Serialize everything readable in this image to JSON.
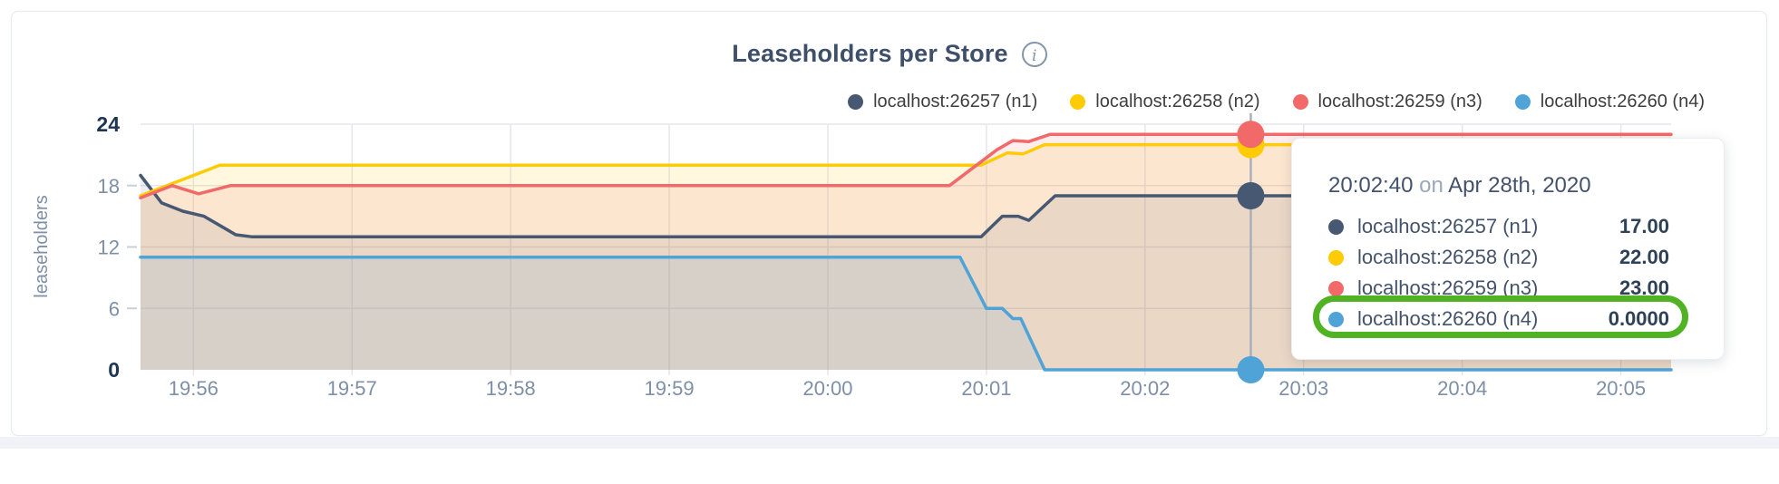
{
  "title": {
    "text": "Leaseholders per Store",
    "info_glyph": "i"
  },
  "chart_data": {
    "type": "line",
    "title": "Leaseholders per Store",
    "xlabel": "",
    "ylabel": "leaseholders",
    "ylim": [
      0,
      24
    ],
    "yticks": [
      0,
      6,
      12,
      18,
      24
    ],
    "ytick_emphasis": [
      0,
      24
    ],
    "xticks": [
      "19:56",
      "19:57",
      "19:58",
      "19:59",
      "20:00",
      "20:01",
      "20:02",
      "20:03",
      "20:04",
      "20:05"
    ],
    "x_domain": [
      "19:55:40",
      "20:05:19"
    ],
    "grid": true,
    "gridline_color": "#e3e6ec",
    "area_fill": true,
    "legend_position": "top-right",
    "series": [
      {
        "name": "localhost:26257 (n1)",
        "color": "#475872",
        "fill_opacity": 0.1,
        "points": [
          [
            "19:55:40",
            19
          ],
          [
            "19:55:48",
            16.3
          ],
          [
            "19:55:56",
            15.5
          ],
          [
            "19:56:04",
            15
          ],
          [
            "19:56:16",
            13.2
          ],
          [
            "19:56:22",
            13
          ],
          [
            "20:00:58",
            13
          ],
          [
            "20:01:06",
            15
          ],
          [
            "20:01:12",
            15
          ],
          [
            "20:01:16",
            14.6
          ],
          [
            "20:01:26",
            17
          ],
          [
            "20:05:19",
            17
          ]
        ]
      },
      {
        "name": "localhost:26258 (n2)",
        "color": "#FFCB05",
        "fill_opacity": 0.13,
        "points": [
          [
            "19:55:40",
            17
          ],
          [
            "19:56:10",
            20
          ],
          [
            "20:00:58",
            20
          ],
          [
            "20:01:08",
            21.2
          ],
          [
            "20:01:14",
            21.1
          ],
          [
            "20:01:22",
            22
          ],
          [
            "20:05:19",
            22
          ]
        ]
      },
      {
        "name": "localhost:26259 (n3)",
        "color": "#F16969",
        "fill_opacity": 0.12,
        "points": [
          [
            "19:55:40",
            16.8
          ],
          [
            "19:55:52",
            18
          ],
          [
            "19:56:02",
            17.2
          ],
          [
            "19:56:14",
            18
          ],
          [
            "20:00:46",
            18
          ],
          [
            "20:01:04",
            21.5
          ],
          [
            "20:01:10",
            22.4
          ],
          [
            "20:01:16",
            22.3
          ],
          [
            "20:01:24",
            23
          ],
          [
            "20:05:19",
            23
          ]
        ]
      },
      {
        "name": "localhost:26260 (n4)",
        "color": "#4FA3D6",
        "fill_opacity": 0.12,
        "points": [
          [
            "19:55:40",
            11
          ],
          [
            "20:00:50",
            11
          ],
          [
            "20:01:00",
            6
          ],
          [
            "20:01:06",
            6
          ],
          [
            "20:01:10",
            5
          ],
          [
            "20:01:13",
            5
          ],
          [
            "20:01:22",
            0
          ],
          [
            "20:05:19",
            0
          ]
        ]
      }
    ],
    "crosshair": {
      "time": "20:02:40",
      "color": "#a9afb9",
      "dot_values": [
        17,
        22,
        23,
        0
      ]
    }
  },
  "tooltip": {
    "time": "20:02:40",
    "preposition": "on",
    "date": "Apr 28th, 2020",
    "rows": [
      {
        "label": "localhost:26257 (n1)",
        "value": "17.00"
      },
      {
        "label": "localhost:26258 (n2)",
        "value": "22.00"
      },
      {
        "label": "localhost:26259 (n3)",
        "value": "23.00"
      },
      {
        "label": "localhost:26260 (n4)",
        "value": "0.0000"
      }
    ],
    "highlight_row_index": 3,
    "highlight_color": "#51b224"
  }
}
